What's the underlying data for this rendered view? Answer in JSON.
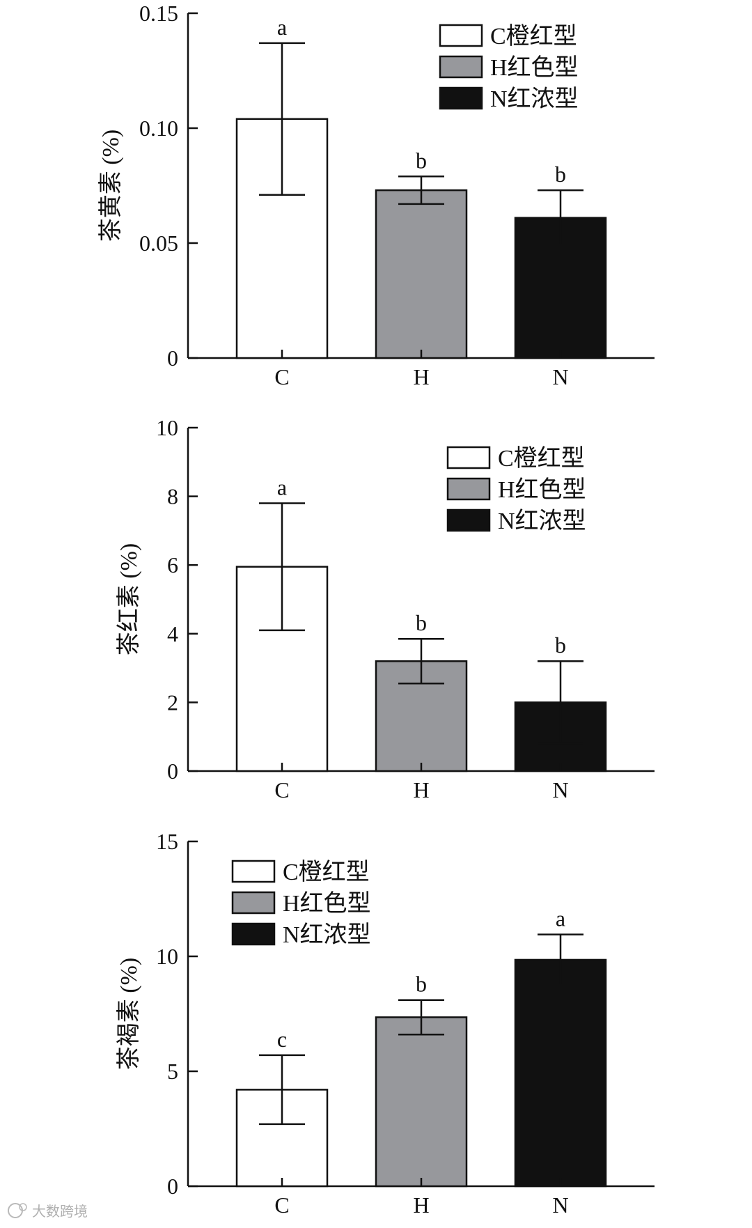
{
  "chart_data": [
    {
      "type": "bar",
      "ylabel": "茶黄素 (%)",
      "categories": [
        "C",
        "H",
        "N"
      ],
      "values": [
        0.104,
        0.073,
        0.061
      ],
      "errors": [
        0.033,
        0.006,
        0.012
      ],
      "letters": [
        "a",
        "b",
        "b"
      ],
      "ylim": [
        0,
        0.15
      ],
      "yticks": [
        0,
        0.05,
        0.1,
        0.15
      ],
      "ytick_labels": [
        "0",
        "0.05",
        "0.10",
        "0.15"
      ],
      "legend_position": "top-right",
      "legend": [
        "C橙红型",
        "H红色型",
        "N红浓型"
      ]
    },
    {
      "type": "bar",
      "ylabel": "茶红素 (%)",
      "categories": [
        "C",
        "H",
        "N"
      ],
      "values": [
        5.95,
        3.2,
        2.0
      ],
      "errors": [
        1.85,
        0.65,
        1.2
      ],
      "letters": [
        "a",
        "b",
        "b"
      ],
      "ylim": [
        0,
        10
      ],
      "yticks": [
        0,
        2,
        4,
        6,
        8,
        10
      ],
      "ytick_labels": [
        "0",
        "2",
        "4",
        "6",
        "8",
        "10"
      ],
      "legend_position": "top-right",
      "legend": [
        "C橙红型",
        "H红色型",
        "N红浓型"
      ]
    },
    {
      "type": "bar",
      "ylabel": "茶褐素 (%)",
      "categories": [
        "C",
        "H",
        "N"
      ],
      "values": [
        4.2,
        7.35,
        9.85
      ],
      "errors": [
        1.5,
        0.75,
        1.1
      ],
      "letters": [
        "c",
        "b",
        "a"
      ],
      "ylim": [
        0,
        15
      ],
      "yticks": [
        0,
        5,
        10,
        15
      ],
      "ytick_labels": [
        "0",
        "5",
        "10",
        "15"
      ],
      "legend_position": "top-left",
      "legend": [
        "C橙红型",
        "H红色型",
        "N红浓型"
      ]
    }
  ],
  "colors": {
    "C": "#ffffff",
    "H": "#97989c",
    "N": "#111111"
  },
  "watermark": {
    "text": "大数跨境",
    "icon": "watermark-logo-icon"
  }
}
